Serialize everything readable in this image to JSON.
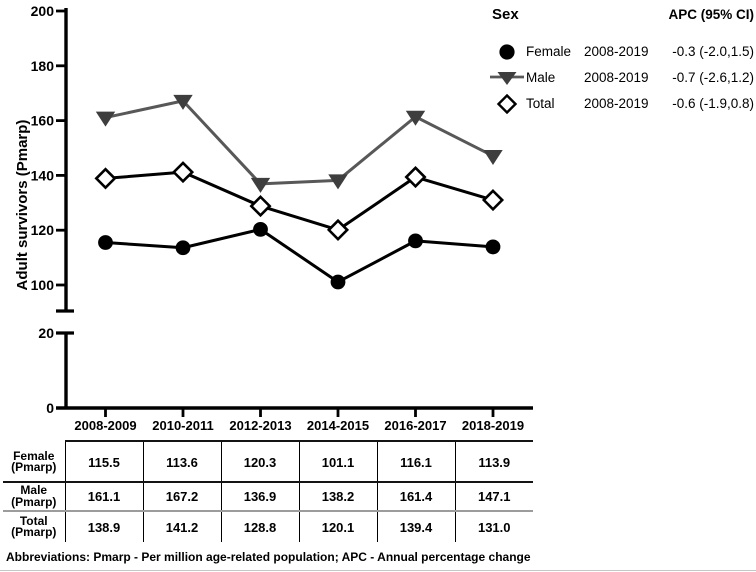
{
  "figure": {
    "footnote": "Abbreviations: Pmarp - Per million age-related population; APC - Annual percentage change"
  },
  "legend": {
    "header_sex": "Sex",
    "header_apc": "APC (95% CI)",
    "rows": [
      {
        "marker": "filled-circle",
        "label": "Female",
        "period": "2008-2019",
        "apc": "-0.3 (-2.0,1.5)"
      },
      {
        "marker": "filled-triangle-down",
        "label": "Male",
        "period": "2008-2019",
        "apc": "-0.7 (-2.6,1.2)"
      },
      {
        "marker": "open-diamond",
        "label": "Total",
        "period": "2008-2019",
        "apc": "-0.6 (-1.9,0.8)"
      }
    ]
  },
  "chart_data": {
    "type": "line",
    "title": "",
    "xlabel": "",
    "ylabel": "Adult survivors (Pmarp)",
    "categories": [
      "2008-2009",
      "2010-2011",
      "2012-2013",
      "2014-2015",
      "2016-2017",
      "2018-2019"
    ],
    "series": [
      {
        "name": "Female",
        "marker": "circle",
        "line_color": "#000000",
        "marker_color": "#000000",
        "values": [
          115.5,
          113.6,
          120.3,
          101.1,
          116.1,
          113.9
        ]
      },
      {
        "name": "Male",
        "marker": "triangle-down",
        "line_color": "#585858",
        "marker_color": "#3e3e3e",
        "values": [
          161.1,
          167.2,
          136.9,
          138.2,
          161.4,
          147.1
        ]
      },
      {
        "name": "Total",
        "marker": "diamond-open",
        "line_color": "#000000",
        "marker_color": "#ffffff",
        "values": [
          138.9,
          141.2,
          128.8,
          120.1,
          139.4,
          131.0
        ]
      }
    ],
    "y_axis": {
      "upper_ticks": [
        200,
        180,
        160,
        140,
        120,
        100
      ],
      "lower_ticks": [
        20,
        0
      ],
      "axis_break": true,
      "upper_range": [
        100,
        200
      ],
      "lower_range": [
        0,
        20
      ]
    },
    "grid": false,
    "legend_position": "top-right"
  },
  "table": {
    "unit_suffix": "(Pmarp)",
    "rows": [
      {
        "label": "Female",
        "sublabel": "(Pmarp)",
        "values": [
          "115.5",
          "113.6",
          "120.3",
          "101.1",
          "116.1",
          "113.9"
        ]
      },
      {
        "label": "Male",
        "sublabel": "(Pmarp)",
        "values": [
          "161.1",
          "167.2",
          "136.9",
          "138.2",
          "161.4",
          "147.1"
        ]
      },
      {
        "label": "Total",
        "sublabel": "(Pmarp)",
        "values": [
          "138.9",
          "141.2",
          "128.8",
          "120.1",
          "139.4",
          "131.0"
        ]
      }
    ]
  },
  "colors": {
    "male_line": "#585858",
    "male_marker": "#3e3e3e",
    "black": "#000000",
    "table_light_rule": "#9c9c9c"
  }
}
